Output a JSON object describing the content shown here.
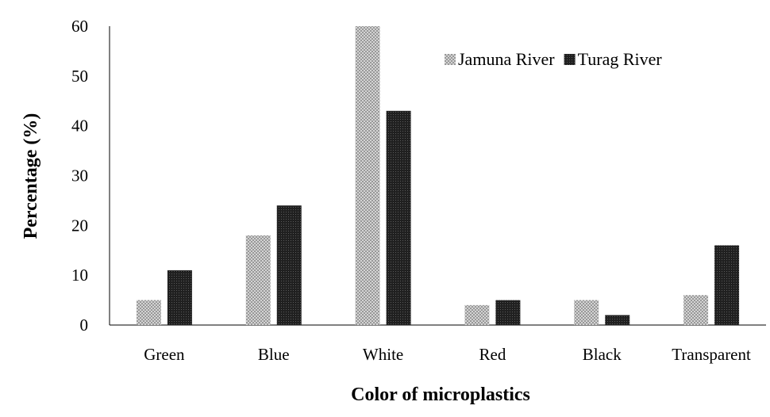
{
  "chart_data": {
    "type": "bar",
    "title": "",
    "xlabel": "Color of microplastics",
    "ylabel": "Percentage (%)",
    "categories": [
      "Green",
      "Blue",
      "White",
      "Red",
      "Black",
      "Transparent"
    ],
    "series": [
      {
        "name": "Jamuna River",
        "values": [
          5,
          18,
          60,
          4,
          5,
          6
        ],
        "color": "#9e9e9e",
        "pattern": "dotted"
      },
      {
        "name": "Turag River",
        "values": [
          11,
          24,
          43,
          5,
          2,
          16
        ],
        "color": "#1a1a1a",
        "pattern": "dense"
      }
    ],
    "ylim": [
      0,
      60
    ],
    "yticks": [
      0,
      10,
      20,
      30,
      40,
      50,
      60
    ],
    "grid": false,
    "legend_position": "top-right"
  }
}
